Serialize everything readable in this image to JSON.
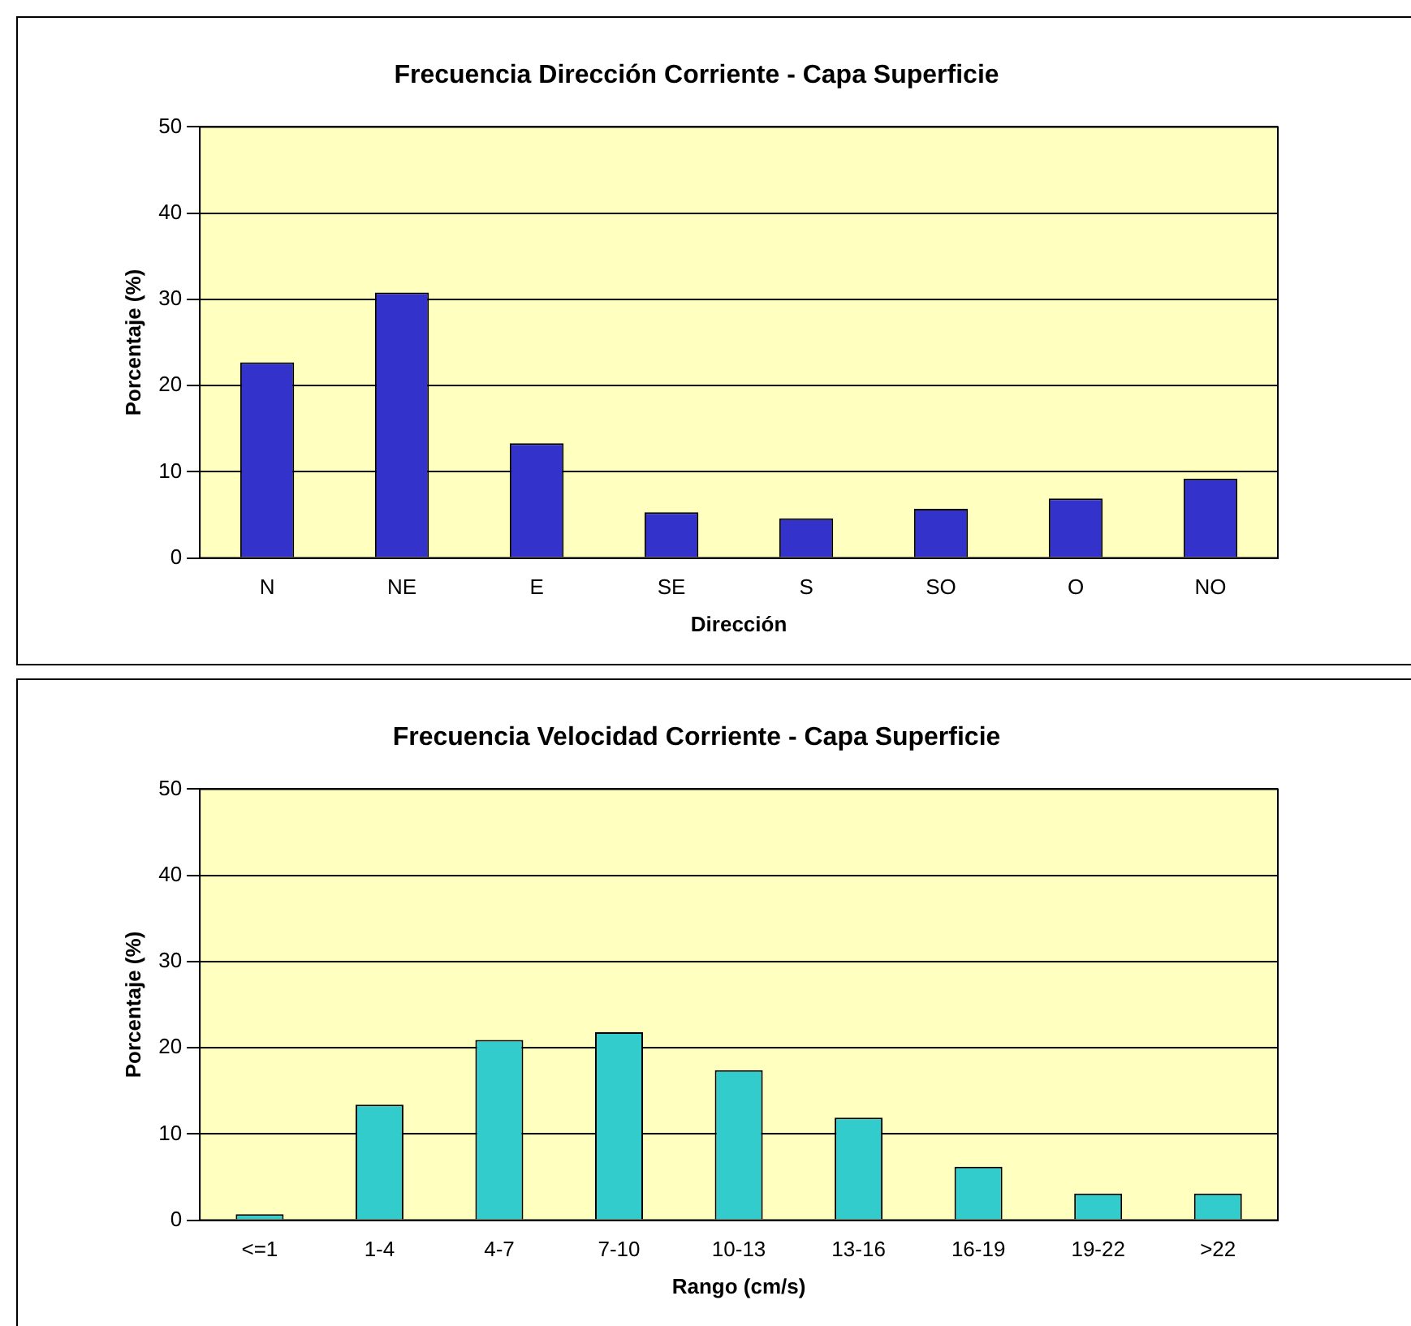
{
  "chart_data": [
    {
      "type": "bar",
      "title": "Frecuencia Dirección Corriente - Capa Superficie",
      "xlabel": "Dirección",
      "ylabel": "Porcentaje (%)",
      "categories": [
        "N",
        "NE",
        "E",
        "SE",
        "S",
        "SO",
        "O",
        "NO"
      ],
      "values": [
        22.7,
        30.8,
        13.3,
        5.3,
        4.6,
        5.7,
        6.9,
        9.2
      ],
      "color": "#3333cc",
      "ylim": [
        0,
        50
      ],
      "yticks": [
        0,
        10,
        20,
        30,
        40,
        50
      ],
      "grid": "y",
      "legend": false
    },
    {
      "type": "bar",
      "title": "Frecuencia Velocidad Corriente - Capa Superficie",
      "xlabel": "Rango (cm/s)",
      "ylabel": "Porcentaje (%)",
      "categories": [
        "<=1",
        "1-4",
        "4-7",
        "7-10",
        "10-13",
        "13-16",
        "16-19",
        "19-22",
        ">22"
      ],
      "values": [
        0.7,
        13.4,
        20.9,
        21.8,
        17.4,
        11.9,
        6.2,
        3.1,
        3.1
      ],
      "color": "#33cccc",
      "ylim": [
        0,
        50
      ],
      "yticks": [
        0,
        10,
        20,
        30,
        40,
        50
      ],
      "grid": "y",
      "legend": false
    }
  ]
}
